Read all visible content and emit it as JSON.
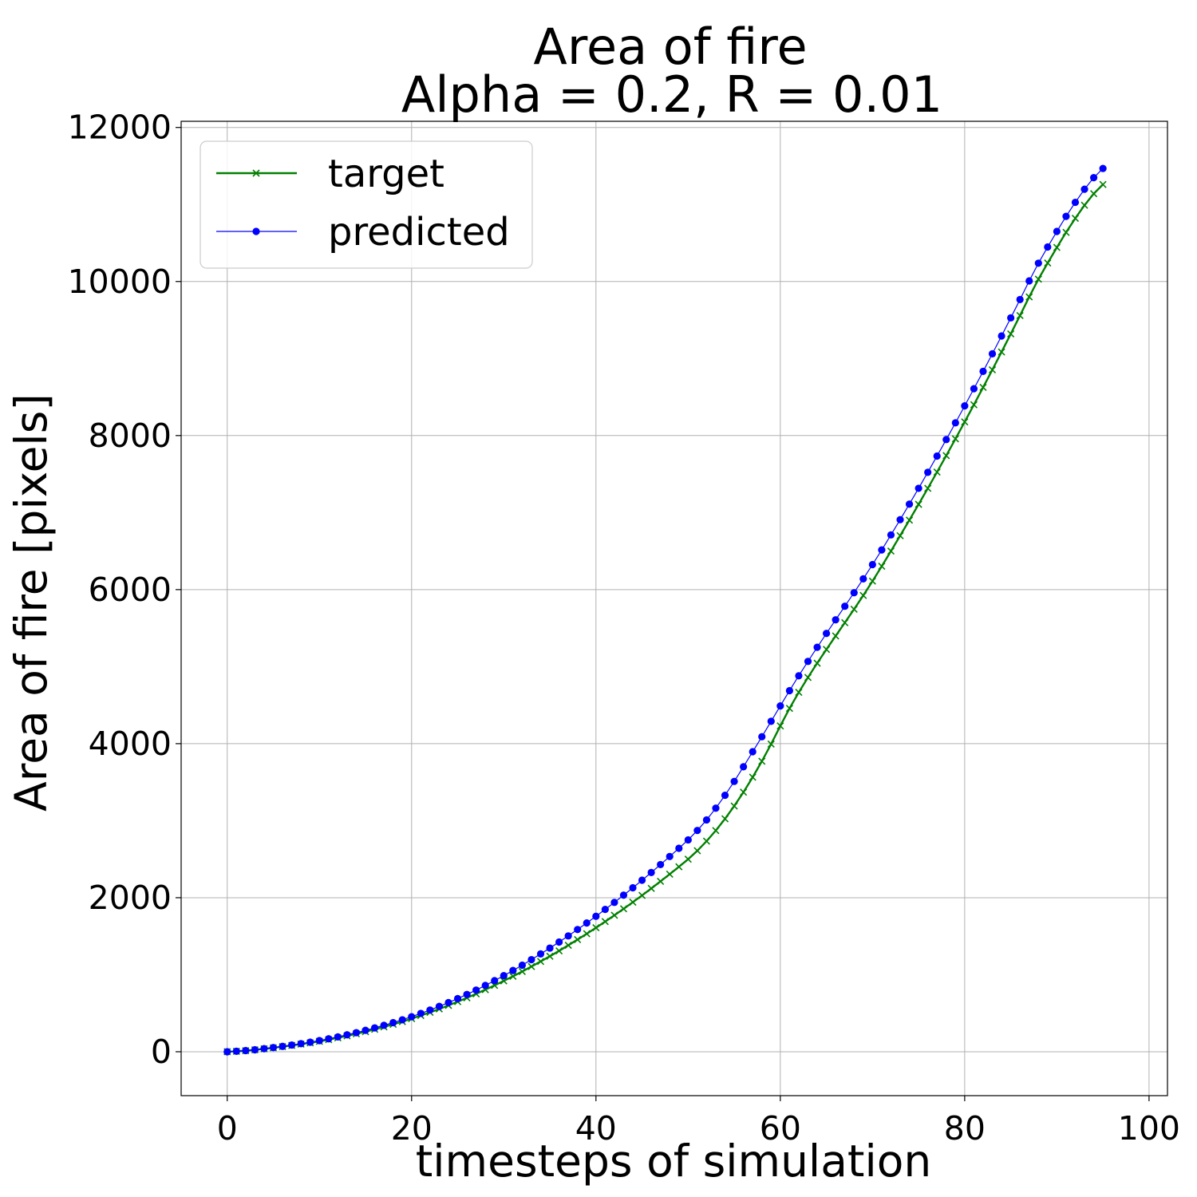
{
  "chart_data": {
    "type": "line",
    "title": "Area of fire",
    "subtitle": "Alpha = 0.2, R = 0.01",
    "xlabel": "timesteps of simulation",
    "ylabel": "Area of fire [pixels]",
    "xlim": [
      -5,
      102
    ],
    "ylim": [
      -570,
      12080
    ],
    "xticks": [
      0,
      20,
      40,
      60,
      80,
      100
    ],
    "yticks": [
      0,
      2000,
      4000,
      6000,
      8000,
      10000,
      12000
    ],
    "grid": true,
    "legend_position": "upper-left",
    "series": [
      {
        "name": "target",
        "color": "#008000",
        "marker": "x",
        "values": [
          0,
          6,
          14,
          25,
          38,
          51,
          66,
          82,
          99,
          116,
          135,
          157,
          181,
          206,
          233,
          261,
          292,
          323,
          356,
          392,
          430,
          471,
          512,
          556,
          602,
          650,
          700,
          752,
          806,
          862,
          920,
          980,
          1042,
          1106,
          1172,
          1240,
          1310,
          1382,
          1456,
          1532,
          1610,
          1690,
          1772,
          1856,
          1942,
          2030,
          2120,
          2212,
          2306,
          2402,
          2500,
          2610,
          2734,
          2872,
          3024,
          3190,
          3370,
          3564,
          3772,
          3994,
          4230,
          4458,
          4666,
          4860,
          5045,
          5223,
          5398,
          5571,
          5745,
          5924,
          6110,
          6303,
          6500,
          6700,
          6902,
          7107,
          7315,
          7526,
          7740,
          7957,
          8177,
          8400,
          8625,
          8853,
          9085,
          9320,
          9558,
          9800,
          10030,
          10240,
          10442,
          10638,
          10820,
          10990,
          11140,
          11260
        ]
      },
      {
        "name": "predicted",
        "color": "#0000ff",
        "marker": "o",
        "values": [
          0,
          6,
          15,
          26,
          40,
          54,
          70,
          87,
          105,
          124,
          145,
          168,
          193,
          220,
          248,
          278,
          310,
          343,
          378,
          415,
          455,
          498,
          542,
          589,
          638,
          690,
          744,
          801,
          861,
          923,
          988,
          1055,
          1124,
          1196,
          1270,
          1346,
          1424,
          1504,
          1587,
          1672,
          1759,
          1848,
          1939,
          2033,
          2129,
          2227,
          2327,
          2430,
          2535,
          2642,
          2751,
          2873,
          3010,
          3162,
          3330,
          3510,
          3700,
          3895,
          4090,
          4290,
          4490,
          4688,
          4881,
          5068,
          5251,
          5431,
          5608,
          5784,
          5960,
          6140,
          6325,
          6515,
          6710,
          6908,
          7110,
          7315,
          7523,
          7734,
          7948,
          8165,
          8385,
          8608,
          8833,
          9061,
          9293,
          9528,
          9766,
          10008,
          10238,
          10448,
          10650,
          10846,
          11028,
          11198,
          11348,
          11468
        ]
      }
    ]
  }
}
